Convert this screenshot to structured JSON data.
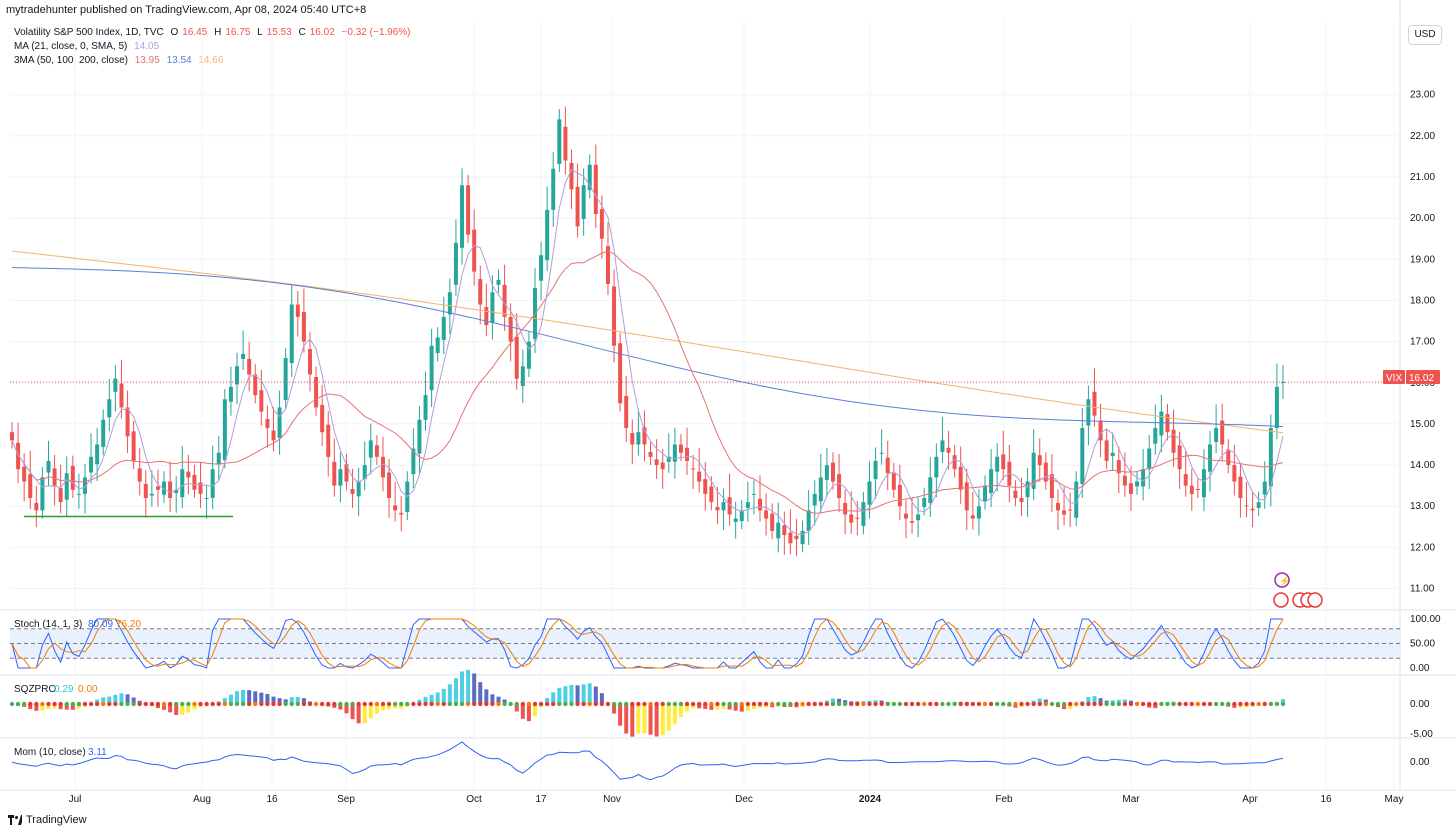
{
  "header": {
    "publisher": "mytradehunter published on TradingView.com, Apr 08, 2024 05:40 UTC+8"
  },
  "legend": {
    "symbol": "Volatility S&P 500 Index, 1D, TVC",
    "o_label": "O",
    "o": "16.45",
    "h_label": "H",
    "h": "16.75",
    "l_label": "L",
    "l": "15.53",
    "c_label": "C",
    "c": "16.02",
    "change": "−0.32 (−1.96%)",
    "ma_label": "MA (21, close, 0, SMA, 5)",
    "ma_value": "14.05",
    "ma3_label": "3MA (50, 100, 200, close)",
    "ma3_v1": "13.95",
    "ma3_v2": "13.54",
    "ma3_v3": "14.66"
  },
  "currency_button": "USD",
  "price_tag": {
    "symbol": "VIX",
    "value": "16.02"
  },
  "footer": {
    "brand": "TradingView"
  },
  "colors": {
    "up": "#26a69a",
    "down": "#ef5350",
    "ma21": "#b39ddb",
    "ma50": "#e57373",
    "ma100": "#5b7fd6",
    "ma200": "#f5b36b",
    "support": "#2e9d2e",
    "stoch_k": "#2962ff",
    "stoch_d": "#f57c00"
  },
  "chart_data": [
    {
      "type": "candlestick",
      "title": "Volatility S&P 500 Index, 1D, TVC",
      "ylim": [
        10.6,
        23.6
      ],
      "y_ticks": [
        "23.00",
        "22.00",
        "21.00",
        "20.00",
        "19.00",
        "18.00",
        "17.00",
        "16.00",
        "15.00",
        "14.00",
        "13.00",
        "12.00",
        "11.00"
      ],
      "x_ticks": [
        "Jul",
        "Aug",
        "16",
        "Sep",
        "Oct",
        "17",
        "Nov",
        "Dec",
        "2024",
        "Feb",
        "Mar",
        "Apr",
        "16",
        "May"
      ],
      "closes": [
        14.6,
        13.9,
        13.6,
        13.2,
        12.9,
        13.7,
        14.1,
        13.5,
        13.1,
        13.8,
        13.4,
        13.3,
        13.7,
        14.2,
        14.5,
        15.1,
        15.6,
        16.1,
        15.4,
        14.7,
        14.1,
        13.6,
        13.2,
        13.3,
        13.4,
        13.6,
        13.2,
        13.4,
        13.9,
        13.7,
        13.4,
        13.3,
        13.2,
        13.9,
        14.3,
        15.6,
        15.9,
        16.4,
        16.7,
        16.2,
        15.7,
        15.3,
        14.9,
        14.6,
        15.4,
        16.6,
        17.9,
        17.6,
        17.0,
        16.2,
        15.4,
        14.8,
        14.2,
        13.5,
        13.9,
        13.6,
        13.3,
        13.6,
        14.0,
        14.6,
        14.2,
        13.7,
        13.2,
        12.9,
        12.8,
        13.6,
        14.4,
        15.1,
        15.7,
        16.9,
        17.1,
        17.6,
        18.2,
        19.4,
        20.8,
        19.6,
        18.7,
        17.9,
        17.4,
        18.2,
        18.5,
        17.6,
        17.0,
        16.1,
        16.4,
        17.0,
        18.3,
        19.1,
        20.2,
        21.2,
        22.4,
        21.4,
        20.7,
        19.8,
        20.8,
        21.3,
        20.1,
        19.5,
        18.4,
        16.9,
        15.5,
        14.9,
        14.5,
        14.8,
        14.5,
        14.2,
        14.0,
        13.9,
        14.2,
        14.5,
        14.3,
        14.1,
        13.9,
        13.6,
        13.3,
        13.1,
        12.9,
        13.1,
        12.8,
        12.7,
        12.9,
        13.1,
        13.3,
        12.9,
        12.7,
        12.4,
        12.6,
        12.3,
        12.1,
        12.2,
        12.4,
        12.9,
        13.3,
        13.7,
        14.0,
        13.6,
        13.2,
        12.8,
        12.6,
        12.7,
        13.1,
        13.6,
        14.1,
        14.3,
        13.8,
        13.4,
        13.0,
        12.7,
        12.6,
        12.8,
        13.2,
        13.7,
        14.2,
        14.6,
        14.3,
        13.9,
        13.4,
        12.9,
        12.7,
        13.0,
        13.5,
        13.9,
        14.2,
        13.9,
        13.5,
        13.2,
        13.1,
        13.6,
        14.3,
        14.0,
        13.6,
        13.2,
        12.9,
        12.8,
        12.9,
        13.6,
        14.9,
        15.6,
        15.2,
        14.6,
        14.1,
        14.3,
        13.8,
        13.5,
        13.3,
        13.6,
        13.9,
        14.4,
        14.9,
        15.3,
        14.8,
        14.3,
        13.9,
        13.5,
        13.3,
        13.4,
        13.9,
        14.5,
        14.9,
        14.5,
        14.0,
        13.6,
        13.2,
        13.0,
        12.9,
        13.1,
        13.6,
        14.9,
        15.9,
        16.02
      ]
    },
    {
      "type": "line",
      "title": "Stoch (14, 1, 3)",
      "values_label": {
        "k": "80.09",
        "d": "76.20"
      },
      "ylim": [
        0,
        100
      ],
      "y_ticks": [
        "100.00",
        "50.00",
        "0.00"
      ]
    },
    {
      "type": "bar",
      "title": "SQZPRO",
      "values_label": {
        "a": "0.29",
        "b": "0.00"
      },
      "y_ticks": [
        "0.00",
        "-5.00"
      ]
    },
    {
      "type": "line",
      "title": "Mom (10, close)",
      "values_label": {
        "a": "3.11"
      },
      "y_ticks": [
        "0.00"
      ]
    }
  ]
}
